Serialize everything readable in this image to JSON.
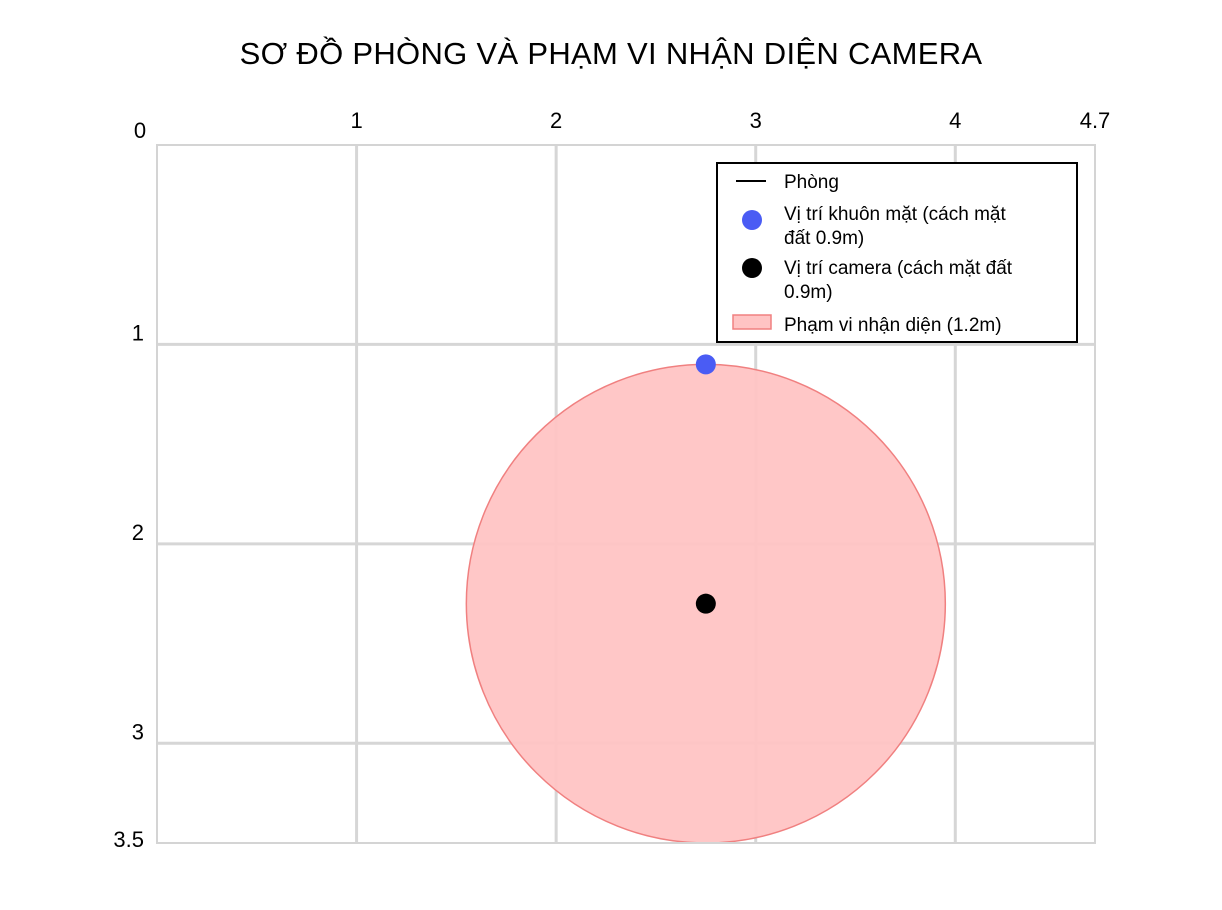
{
  "chart_data": {
    "type": "scatter",
    "title": "SƠ ĐỒ PHÒNG VÀ PHẠM VI NHẬN DIỆN CAMERA",
    "xlabel": "",
    "ylabel": "",
    "xlim": [
      0,
      4.7
    ],
    "ylim": [
      0,
      3.5
    ],
    "y_axis_inverted": true,
    "x_axis_position": "top",
    "grid": true,
    "x_ticks": [
      0,
      1,
      2,
      3,
      4,
      4.7
    ],
    "x_tick_labels": [
      "0",
      "1",
      "2",
      "3",
      "4",
      "4.7"
    ],
    "y_ticks": [
      1,
      2,
      3,
      3.5
    ],
    "y_tick_labels": [
      "1",
      "2",
      "3",
      "3.5"
    ],
    "room": {
      "label": "Phòng",
      "width": 4.7,
      "depth": 3.5,
      "color": "#000000"
    },
    "face_position": {
      "label": "Vị trí khuôn mặt (cách mặt đất 0.9m)",
      "x": 2.75,
      "y": 1.1,
      "color": "#4a5cf4"
    },
    "camera_position": {
      "label": "Vị trí camera (cách mặt đất 0.9m)",
      "x": 2.75,
      "y": 2.3,
      "color": "#000000"
    },
    "recognition_range": {
      "label": "Phạm vi nhận diện (1.2m)",
      "center_x": 2.75,
      "center_y": 2.3,
      "radius": 1.2,
      "fill": "#ffc4c4",
      "stroke": "#f08080"
    },
    "legend": {
      "position": "top-right",
      "entries": [
        [
          "Phòng"
        ],
        [
          "Vị trí khuôn mặt (cách mặt",
          "đất 0.9m)"
        ],
        [
          "Vị trí camera (cách mặt đất",
          "0.9m)"
        ],
        [
          "Phạm vi nhận diện (1.2m)"
        ]
      ]
    }
  }
}
